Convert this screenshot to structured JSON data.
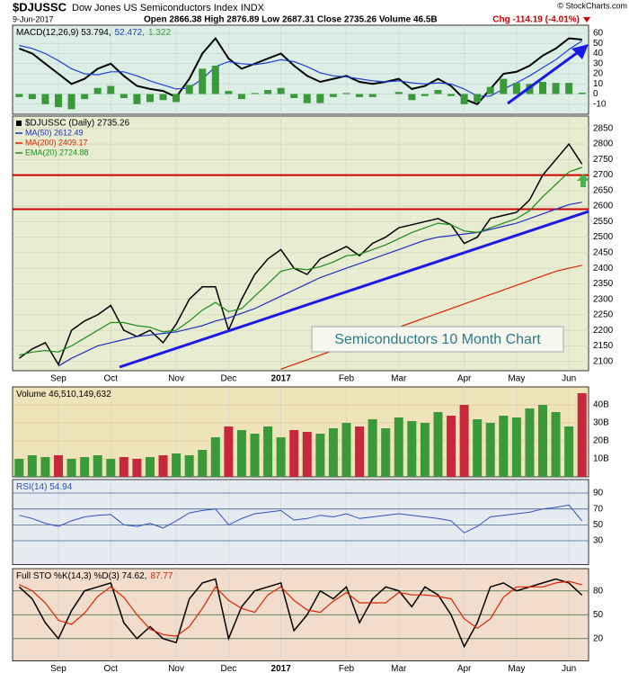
{
  "header": {
    "symbol": "$DJUSSC",
    "name": "Dow Jones US Semiconductors Index INDX",
    "date": "9-Jun-2017",
    "quote": "Open 2866.38 High 2876.89 Low 2687.31 Close 2735.26 Volume 46.5B",
    "change": "Chg -114.19 (-4.01%)",
    "source": "© StockCharts.com"
  },
  "chart_data": [
    {
      "type": "line",
      "legend": "inline",
      "background": "#dceee6",
      "gridcolor": "#c3d6cf",
      "ylim": [
        -20,
        68
      ],
      "yticks": [
        60,
        50,
        40,
        30,
        20,
        10,
        0,
        -10
      ],
      "series": [
        {
          "name": "MACD(12,26,9) 53.794,",
          "color": "#000000",
          "width": 2,
          "values": [
            45,
            40,
            30,
            20,
            10,
            15,
            25,
            30,
            18,
            8,
            5,
            3,
            -3,
            15,
            40,
            55,
            35,
            25,
            30,
            35,
            40,
            28,
            18,
            12,
            15,
            18,
            12,
            10,
            12,
            15,
            5,
            8,
            15,
            8,
            -5,
            -10,
            5,
            20,
            22,
            28,
            38,
            45,
            55,
            53.794
          ]
        },
        {
          "name": "52.472,",
          "color": "#1f3fd0",
          "width": 1.2,
          "values": [
            48,
            45,
            40,
            33,
            25,
            20,
            19,
            22,
            22,
            18,
            13,
            9,
            5,
            6,
            15,
            27,
            32,
            30,
            29,
            31,
            34,
            32,
            27,
            21,
            18,
            17,
            15,
            13,
            12,
            13,
            11,
            10,
            11,
            10,
            5,
            -2,
            -2,
            5,
            11,
            18,
            26,
            34,
            44,
            52.472
          ]
        },
        {
          "name": "1.322",
          "color": "#3a9a3a",
          "style": "bar",
          "values": [
            -3,
            -5,
            -10,
            -13,
            -15,
            -5,
            6,
            8,
            -4,
            -10,
            -8,
            -6,
            -8,
            9,
            25,
            28,
            3,
            -5,
            1,
            4,
            6,
            -4,
            -9,
            -9,
            -3,
            1,
            -3,
            -3,
            0,
            2,
            -6,
            -2,
            4,
            -2,
            -10,
            -8,
            7,
            15,
            11,
            10,
            12,
            11,
            11,
            1.322
          ]
        }
      ]
    },
    {
      "type": "line",
      "legend": "stacked",
      "background": "#e8edd2",
      "gridcolor": "#d2d8bc",
      "ylim": [
        2070,
        2890
      ],
      "yticks": [
        2850,
        2800,
        2750,
        2700,
        2650,
        2600,
        2550,
        2500,
        2450,
        2400,
        2350,
        2300,
        2250,
        2200,
        2150,
        2100
      ],
      "categories": [
        null,
        null,
        null,
        "Sep",
        null,
        null,
        null,
        "Oct",
        null,
        null,
        null,
        null,
        "Nov",
        null,
        null,
        null,
        "Dec",
        null,
        null,
        null,
        "2017",
        null,
        null,
        null,
        null,
        "Feb",
        null,
        null,
        null,
        "Mar",
        null,
        null,
        null,
        null,
        "Apr",
        null,
        null,
        null,
        "May",
        null,
        null,
        null,
        "Jun",
        null
      ],
      "levels": [
        2700,
        2590
      ],
      "level_color": "#cc0000",
      "annotation": "Semiconductors 10 Month Chart",
      "series": [
        {
          "name": "$DJUSSC (Daily) 2735.26",
          "color": "#000000",
          "width": 1.5,
          "values": [
            2110,
            2140,
            2160,
            2090,
            2200,
            2230,
            2250,
            2280,
            2200,
            2180,
            2200,
            2160,
            2220,
            2300,
            2340,
            2340,
            2200,
            2300,
            2380,
            2430,
            2460,
            2400,
            2380,
            2430,
            2450,
            2470,
            2440,
            2480,
            2500,
            2530,
            2540,
            2550,
            2560,
            2540,
            2480,
            2500,
            2560,
            2570,
            2580,
            2620,
            2700,
            2750,
            2800,
            2735.26
          ]
        },
        {
          "name": "MA(50) 2612.49",
          "color": "#2032b8",
          "width": 1.2,
          "values": [
            null,
            null,
            null,
            2085,
            2110,
            2130,
            2150,
            2160,
            2170,
            2180,
            2185,
            2190,
            2195,
            2205,
            2215,
            2230,
            2240,
            2255,
            2270,
            2290,
            2310,
            2330,
            2350,
            2370,
            2385,
            2400,
            2415,
            2430,
            2445,
            2460,
            2475,
            2490,
            2500,
            2505,
            2510,
            2515,
            2525,
            2535,
            2545,
            2560,
            2575,
            2590,
            2605,
            2612.49
          ]
        },
        {
          "name": "MA(200) 2409.17",
          "color": "#dd2200",
          "width": 1.2,
          "values": [
            null,
            null,
            null,
            null,
            null,
            null,
            null,
            null,
            null,
            null,
            null,
            null,
            null,
            null,
            null,
            null,
            null,
            null,
            null,
            null,
            2075,
            2090,
            2105,
            2120,
            2135,
            2150,
            2165,
            2180,
            2195,
            2210,
            2225,
            2240,
            2255,
            2270,
            2285,
            2300,
            2315,
            2330,
            2345,
            2360,
            2375,
            2390,
            2400,
            2409.17
          ]
        },
        {
          "name": "EMA(20) 2724.88",
          "color": "#1b8a1b",
          "width": 1.2,
          "values": [
            2120,
            2130,
            2135,
            2130,
            2150,
            2175,
            2200,
            2225,
            2225,
            2215,
            2210,
            2195,
            2200,
            2230,
            2265,
            2290,
            2260,
            2270,
            2310,
            2350,
            2390,
            2400,
            2395,
            2405,
            2420,
            2440,
            2445,
            2460,
            2475,
            2495,
            2515,
            2530,
            2545,
            2540,
            2520,
            2515,
            2530,
            2545,
            2560,
            2585,
            2630,
            2670,
            2710,
            2724.88
          ]
        }
      ]
    },
    {
      "type": "bar",
      "legend": "inline",
      "background": "#efe3b9",
      "gridcolor": "#dccd9c",
      "ylim": [
        0,
        50
      ],
      "yticks": [
        {
          "value": 40,
          "label": "40B"
        },
        {
          "value": 30,
          "label": "30B"
        },
        {
          "value": 20,
          "label": "20B"
        },
        {
          "value": 10,
          "label": "10B"
        }
      ],
      "up_color": "#3a9a3a",
      "down_color": "#c8283c",
      "series": [
        {
          "name": "Volume 46,510,149,632",
          "color": "#000000",
          "style": "bar",
          "values": [
            10,
            12,
            11,
            12,
            10,
            11,
            12,
            10,
            11,
            10,
            11,
            12,
            13,
            12,
            15,
            22,
            28,
            26,
            24,
            28,
            22,
            26,
            25,
            24,
            27,
            30,
            28,
            32,
            27,
            33,
            31,
            30,
            36,
            34,
            40,
            32,
            30,
            34,
            33,
            38,
            40,
            36,
            28,
            46.51
          ]
        }
      ]
    },
    {
      "type": "line",
      "legend": "inline",
      "background": "#e5ebf0",
      "gridcolor": "#4a6a8a",
      "ylim": [
        0,
        107
      ],
      "yticks": [
        90,
        70,
        50,
        30
      ],
      "series": [
        {
          "name": "RSI(14) 54.94",
          "color": "#3050c0",
          "width": 1,
          "values": [
            62,
            58,
            52,
            48,
            55,
            60,
            62,
            63,
            50,
            48,
            52,
            46,
            55,
            65,
            68,
            70,
            50,
            58,
            64,
            66,
            68,
            56,
            58,
            62,
            60,
            64,
            58,
            60,
            62,
            64,
            62,
            60,
            58,
            55,
            40,
            48,
            60,
            62,
            64,
            66,
            70,
            72,
            75,
            54.94
          ]
        }
      ]
    },
    {
      "type": "line",
      "legend": "inline",
      "background": "#f2dccb",
      "gridcolor": "#3a6a3a",
      "ylim": [
        -8,
        108
      ],
      "yticks": [
        80,
        50,
        20
      ],
      "categories": [
        null,
        null,
        null,
        "Sep",
        null,
        null,
        null,
        "Oct",
        null,
        null,
        null,
        null,
        "Nov",
        null,
        null,
        null,
        "Dec",
        null,
        null,
        null,
        "2017",
        null,
        null,
        null,
        null,
        "Feb",
        null,
        null,
        null,
        "Mar",
        null,
        null,
        null,
        null,
        "Apr",
        null,
        null,
        null,
        "May",
        null,
        null,
        null,
        "Jun",
        null
      ],
      "series": [
        {
          "name": "Full STO %K(14,3) %D(3) 74.62,",
          "color": "#000000",
          "width": 1.5,
          "values": [
            85,
            70,
            40,
            20,
            55,
            80,
            85,
            90,
            40,
            20,
            35,
            20,
            15,
            70,
            90,
            95,
            20,
            60,
            80,
            85,
            90,
            30,
            50,
            80,
            70,
            85,
            40,
            70,
            85,
            80,
            60,
            85,
            75,
            50,
            10,
            40,
            85,
            90,
            80,
            85,
            90,
            95,
            90,
            74.62
          ]
        },
        {
          "name": "87.77",
          "color": "#dd2200",
          "width": 1.2,
          "values": [
            88,
            80,
            65,
            43,
            38,
            52,
            73,
            85,
            72,
            50,
            32,
            25,
            23,
            35,
            58,
            85,
            68,
            58,
            53,
            75,
            85,
            68,
            56,
            53,
            67,
            78,
            65,
            65,
            65,
            78,
            75,
            75,
            73,
            70,
            45,
            33,
            45,
            72,
            85,
            85,
            85,
            90,
            92,
            87.77
          ]
        }
      ]
    }
  ]
}
